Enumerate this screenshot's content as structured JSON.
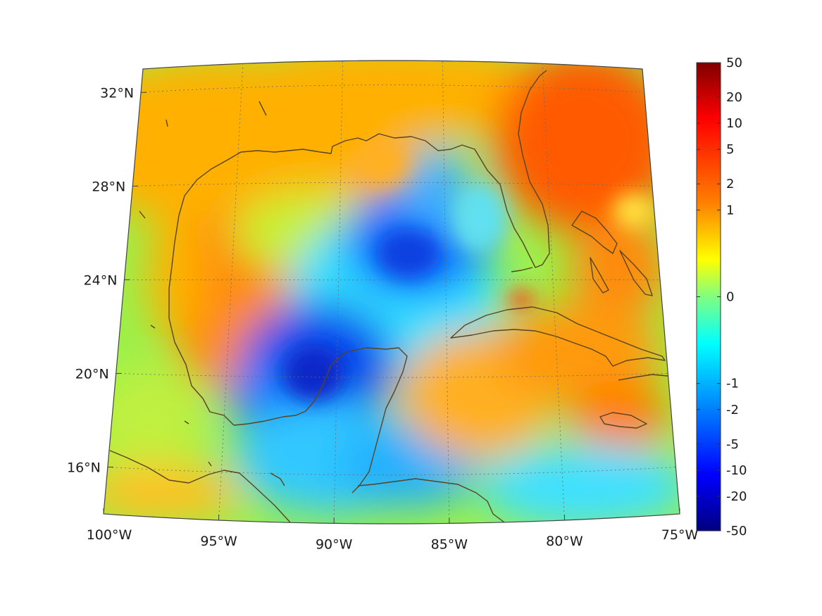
{
  "map": {
    "projection": "conic",
    "lon_range": [
      -100,
      -75
    ],
    "lat_range": [
      14,
      33
    ],
    "lon_ticks": [
      {
        "value": -100,
        "label": "100°W"
      },
      {
        "value": -95,
        "label": "95°W"
      },
      {
        "value": -90,
        "label": "90°W"
      },
      {
        "value": -85,
        "label": "85°W"
      },
      {
        "value": -80,
        "label": "80°W"
      },
      {
        "value": -75,
        "label": "75°W"
      }
    ],
    "lat_ticks": [
      {
        "value": 32,
        "label": "32°N"
      },
      {
        "value": 28,
        "label": "28°N"
      },
      {
        "value": 24,
        "label": "24°N"
      },
      {
        "value": 20,
        "label": "20°N"
      },
      {
        "value": 16,
        "label": "16°N"
      }
    ],
    "grid": true,
    "coastline_color": "#5a4320",
    "colors": {
      "frame": "#444444",
      "grid": "#6a6a6a"
    },
    "field_features": [
      {
        "region": "eastern Gulf of Mexico",
        "value_range": [
          -10,
          -5
        ]
      },
      {
        "region": "Bay of Campeche",
        "value_range": [
          -20,
          -10
        ]
      },
      {
        "region": "western Gulf / Mexico",
        "value_range": [
          2,
          5
        ]
      },
      {
        "region": "Florida and Atlantic",
        "value_range": [
          5,
          10
        ]
      },
      {
        "region": "Caribbean Sea",
        "value_range": [
          -2,
          5
        ]
      }
    ]
  },
  "colorbar": {
    "position": "right",
    "scale": "symmetric-log",
    "range": [
      -50,
      50
    ],
    "colormap": "jet",
    "ticks": [
      "50",
      "20",
      "10",
      "5",
      "2",
      "1",
      "0",
      "-1",
      "-2",
      "-5",
      "-10",
      "-20",
      "-50"
    ]
  }
}
